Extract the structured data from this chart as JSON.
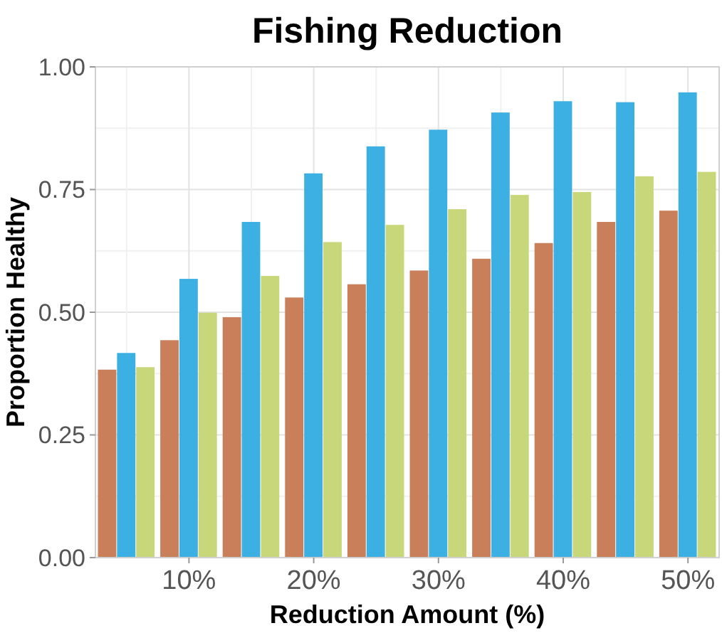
{
  "chart_data": {
    "type": "bar",
    "title": "Fishing Reduction",
    "xlabel": "Reduction Amount (%)",
    "ylabel": "Proportion Healthy",
    "categories": [
      null,
      "10%",
      null,
      "20%",
      null,
      "30%",
      null,
      "40%",
      null,
      "50%"
    ],
    "series": [
      {
        "color": "#c97f5a",
        "values": [
          0.383,
          0.443,
          0.49,
          0.53,
          0.557,
          0.585,
          0.609,
          0.641,
          0.684,
          0.707
        ]
      },
      {
        "color": "#3db0e3",
        "values": [
          0.417,
          0.568,
          0.684,
          0.783,
          0.838,
          0.872,
          0.907,
          0.93,
          0.928,
          0.948
        ]
      },
      {
        "color": "#c8d77a",
        "values": [
          0.388,
          0.499,
          0.574,
          0.643,
          0.678,
          0.71,
          0.739,
          0.745,
          0.777,
          0.786
        ]
      }
    ],
    "ylim": [
      0,
      1
    ],
    "yticks": [
      {
        "value": 0,
        "label": "0.00"
      },
      {
        "value": 0.25,
        "label": "0.25"
      },
      {
        "value": 0.5,
        "label": "0.50"
      },
      {
        "value": 0.75,
        "label": "0.75"
      },
      {
        "value": 1,
        "label": "1.00"
      }
    ],
    "grid": true
  }
}
